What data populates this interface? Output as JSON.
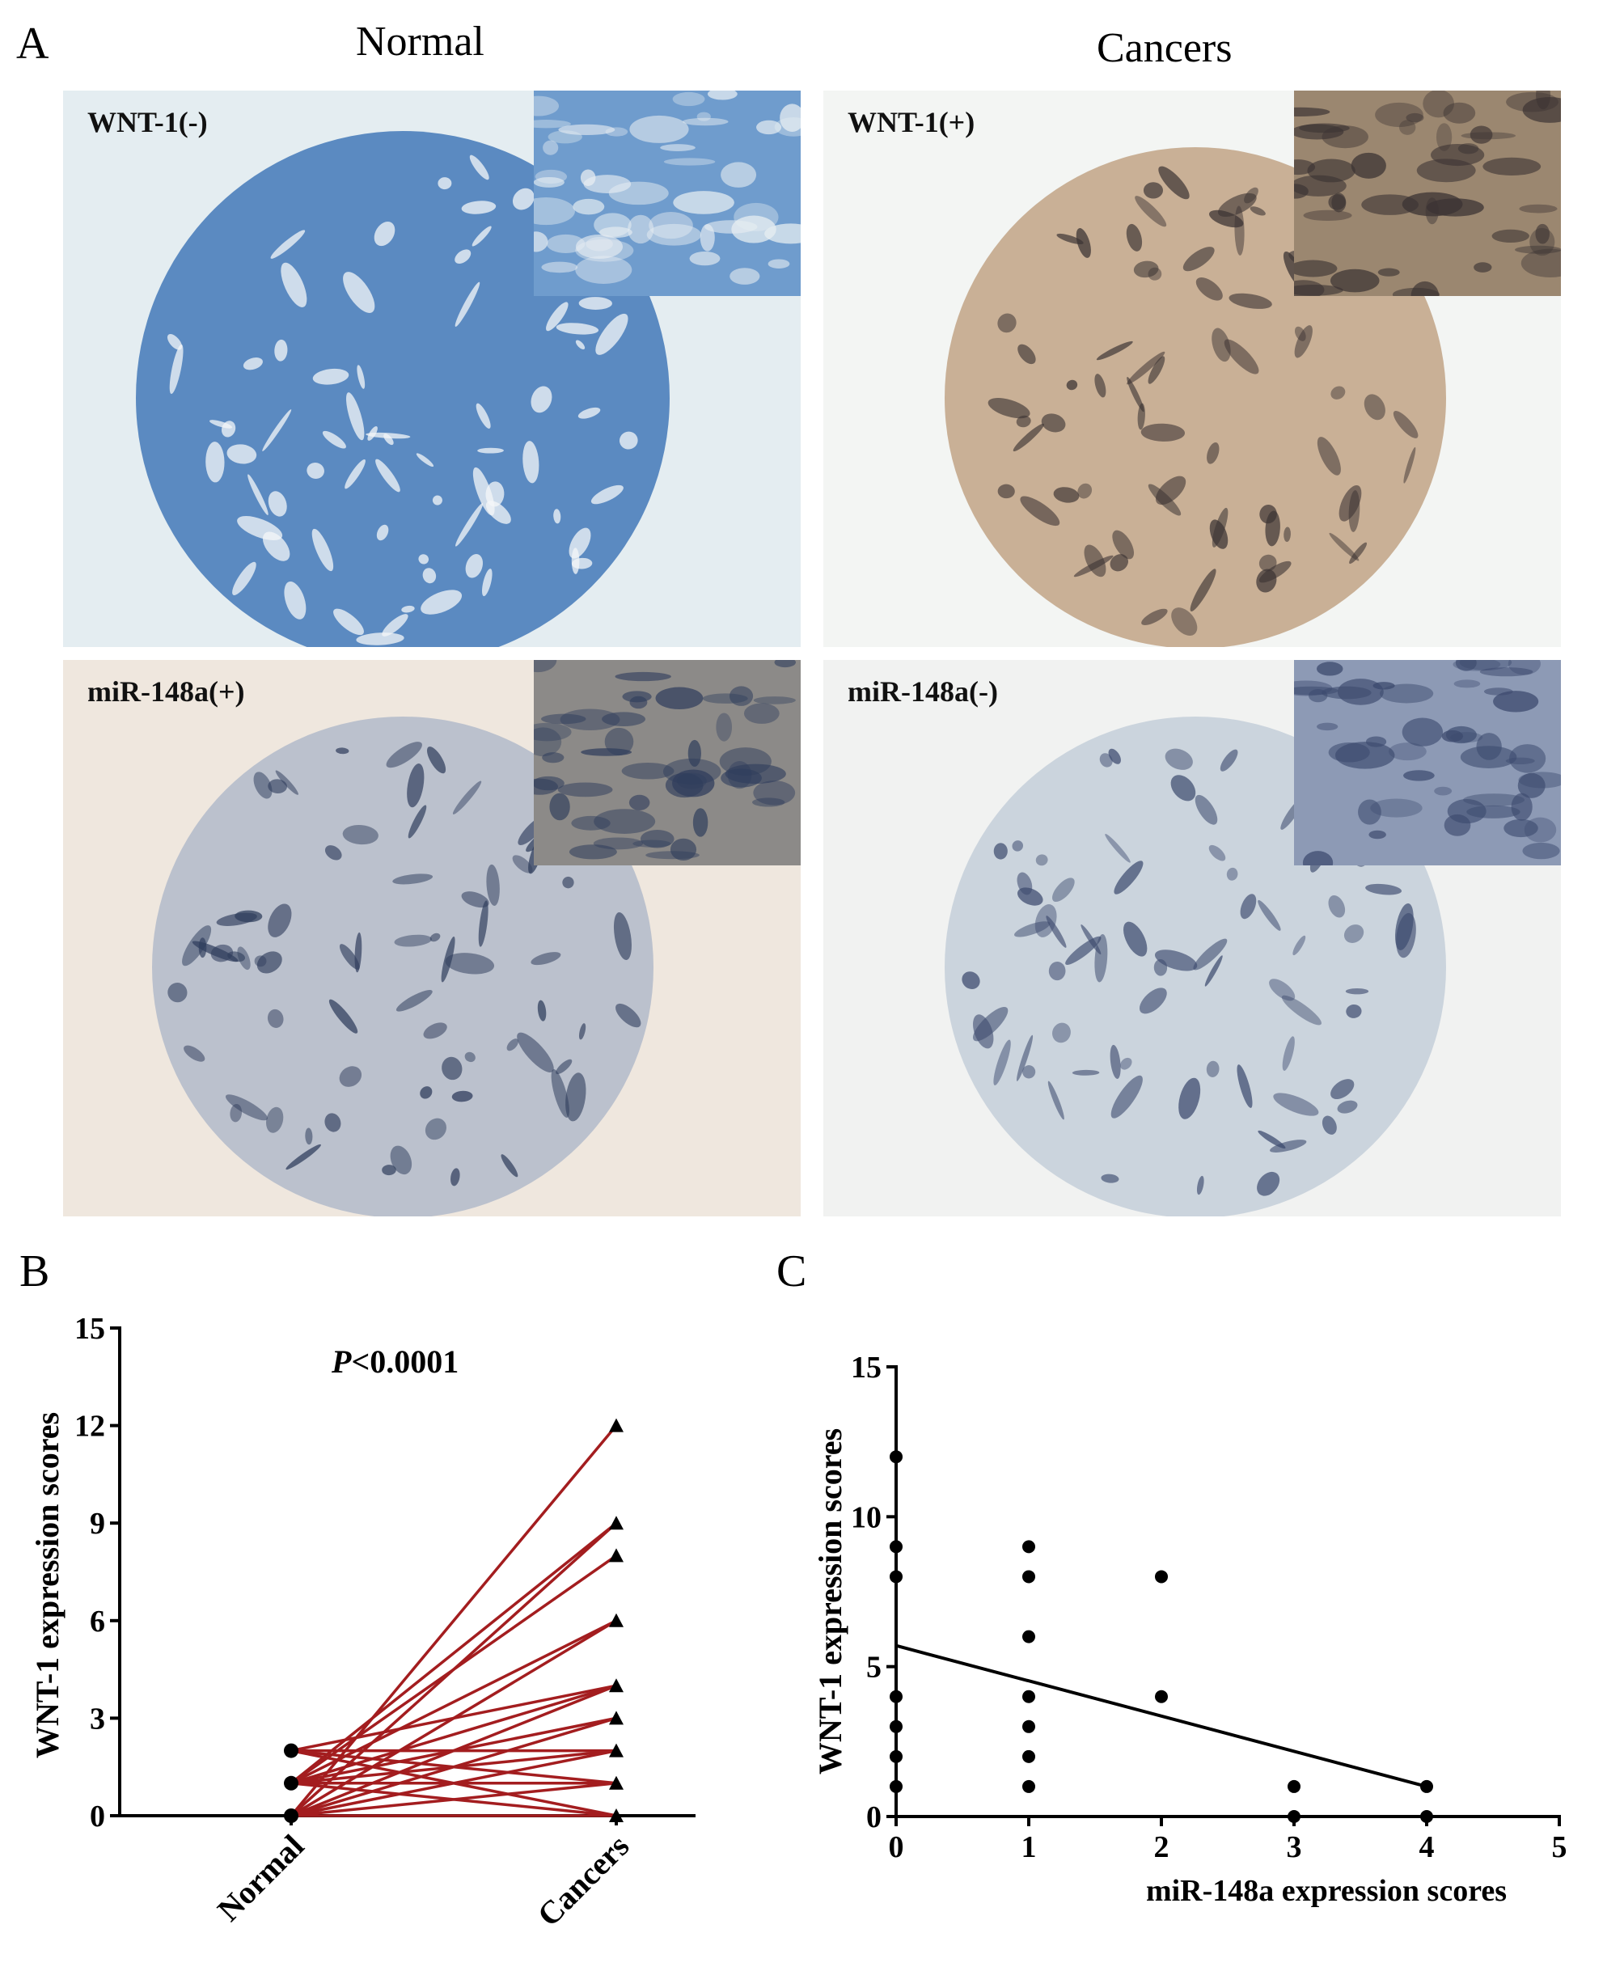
{
  "panel_a": {
    "letter": "A",
    "columns": [
      "Normal",
      "Cancers"
    ],
    "images": [
      {
        "label": "WNT-1(-)",
        "bg": "#e4edf1",
        "tissue": "#4b7ebb",
        "dark": "#2a3e6a",
        "inset_bg": "#6f9ccd"
      },
      {
        "label": "WNT-1(+)",
        "bg": "#f3f5f3",
        "tissue": "#c4a88c",
        "dark": "#3b3333",
        "inset_bg": "#9b8770"
      },
      {
        "label": "miR-148a(+)",
        "bg": "#efe7de",
        "tissue": "#b5bccb",
        "dark": "#2f3d5c",
        "inset_bg": "#8c8a88"
      },
      {
        "label": "miR-148a(-)",
        "bg": "#f1f2f1",
        "tissue": "#c6d0da",
        "dark": "#3c4a6e",
        "inset_bg": "#8d9ab5"
      }
    ]
  },
  "chart_data": [
    {
      "type": "line",
      "panel_letter": "B",
      "title": "",
      "annotation_italic": "P",
      "annotation_rest": "<0.0001",
      "xlabel": "",
      "ylabel": "WNT-1 expression scores",
      "categories": [
        "Normal",
        "Cancers"
      ],
      "ylim": [
        0,
        15
      ],
      "yticks": [
        0,
        3,
        6,
        9,
        12,
        15
      ],
      "line_color": "#a31d1f",
      "pairs": [
        [
          0,
          12
        ],
        [
          0,
          9
        ],
        [
          1,
          9
        ],
        [
          1,
          8
        ],
        [
          0,
          6
        ],
        [
          1,
          6
        ],
        [
          0,
          4
        ],
        [
          1,
          4
        ],
        [
          2,
          4
        ],
        [
          0,
          3
        ],
        [
          1,
          3
        ],
        [
          1,
          2
        ],
        [
          0,
          2
        ],
        [
          2,
          2
        ],
        [
          1,
          1
        ],
        [
          0,
          1
        ],
        [
          2,
          1
        ],
        [
          1,
          0
        ],
        [
          2,
          0
        ],
        [
          0,
          0
        ]
      ]
    },
    {
      "type": "scatter",
      "panel_letter": "C",
      "title": "",
      "xlabel": "miR-148a expression scores",
      "ylabel": "WNT-1 expression scores",
      "xlim": [
        0,
        5
      ],
      "ylim": [
        0,
        15
      ],
      "xticks": [
        0,
        1,
        2,
        3,
        4,
        5
      ],
      "yticks": [
        0,
        5,
        10,
        15
      ],
      "points": [
        [
          0,
          12
        ],
        [
          0,
          9
        ],
        [
          0,
          8
        ],
        [
          0,
          4
        ],
        [
          0,
          3
        ],
        [
          0,
          2
        ],
        [
          0,
          1
        ],
        [
          1,
          9
        ],
        [
          1,
          8
        ],
        [
          1,
          6
        ],
        [
          1,
          4
        ],
        [
          1,
          3
        ],
        [
          1,
          2
        ],
        [
          1,
          1
        ],
        [
          2,
          8
        ],
        [
          2,
          4
        ],
        [
          3,
          1
        ],
        [
          3,
          0
        ],
        [
          4,
          1
        ],
        [
          4,
          0
        ]
      ],
      "regression": {
        "x": [
          0,
          4
        ],
        "y": [
          5.7,
          1.0
        ]
      }
    }
  ]
}
